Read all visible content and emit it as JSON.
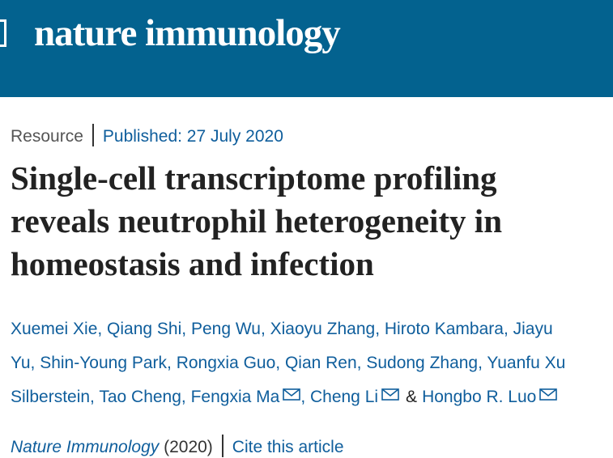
{
  "header": {
    "logo": "nature immunology"
  },
  "meta": {
    "type": "Resource",
    "published": "Published: 27 July 2020"
  },
  "title": {
    "lines": [
      "Single-cell transcriptome profiling",
      "reveals neutrophil heterogeneity in",
      "homeostasis and infection"
    ]
  },
  "authors": {
    "line1": "Xuemei Xie, Qiang Shi, Peng Wu, Xiaoyu Zhang, Hiroto Kambara, Jiayu",
    "line2": "Yu, Shin-Young Park, Rongxia Guo, Qian Ren, Sudong Zhang, Yuanfu Xu",
    "line3": [
      "Silberstein, Tao Cheng, Fengxia Ma",
      ", Cheng Li",
      "&",
      "Hongbo R. Luo"
    ]
  },
  "citation": {
    "journal": "Nature Immunology",
    "year": "(2020)",
    "cite": "Cite this article"
  }
}
